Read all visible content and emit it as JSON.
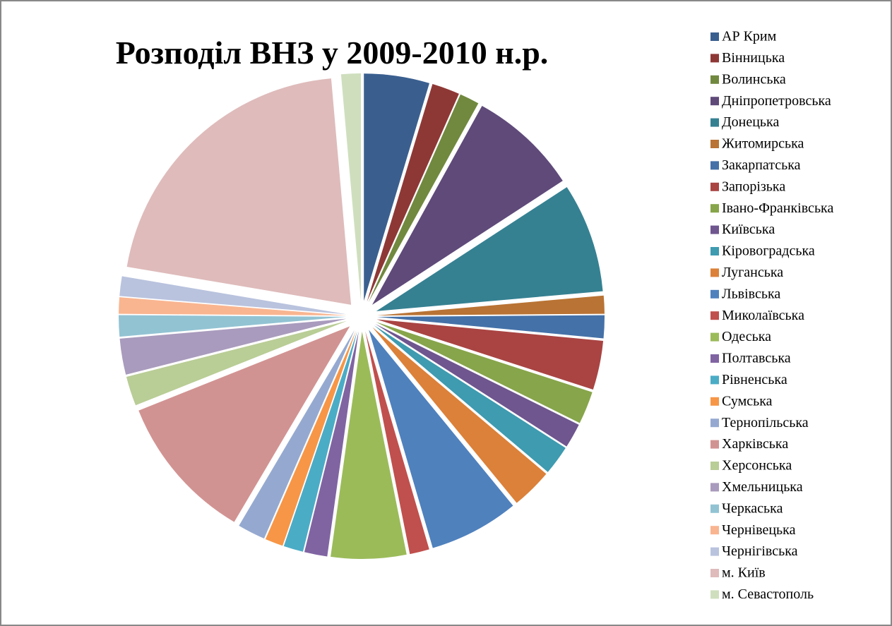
{
  "chart_data": {
    "type": "pie",
    "title": "Розподіл ВНЗ у 2009-2010 н.р.",
    "categories": [
      "АР Крим",
      "Вінницька",
      "Волинська",
      "Дніпропетровська",
      "Донецька",
      "Житомирська",
      "Закарпатська",
      "Запорізька",
      "Івано-Франківська",
      "Київська",
      "Кіровоградська",
      "Луганська",
      "Львівська",
      "Миколаївська",
      "Одеська",
      "Полтавська",
      "Рівненська",
      "Сумська",
      "Тернопільська",
      "Харківська",
      "Херсонська",
      "Хмельницька",
      "Черкаська",
      "Чернівецька",
      "Чернігівська",
      "м. Київ",
      "м. Севастополь"
    ],
    "values": [
      4,
      1.7,
      1.2,
      6.7,
      6.7,
      1.1,
      1.4,
      3,
      2,
      1.5,
      1.8,
      2.5,
      5.5,
      1.2,
      4.6,
      1.4,
      1.2,
      1.1,
      1.7,
      9,
      1.8,
      2.2,
      1.3,
      1,
      1.2,
      18,
      1.2
    ],
    "colors": [
      "#3a5f8f",
      "#8e3836",
      "#71893f",
      "#5f4a7a",
      "#358192",
      "#b97334",
      "#4471a8",
      "#a94442",
      "#87a54a",
      "#6f568f",
      "#3e9bb0",
      "#dc8139",
      "#4f81bd",
      "#c0504d",
      "#9bbb59",
      "#8064a2",
      "#4bacc6",
      "#f79646",
      "#95a9d0",
      "#d19392",
      "#b9cd96",
      "#a99bbd",
      "#92c3d3",
      "#f9b590",
      "#b9c3de",
      "#dfbbbb",
      "#cfdfbe"
    ],
    "legend": "right",
    "exploded": true
  }
}
